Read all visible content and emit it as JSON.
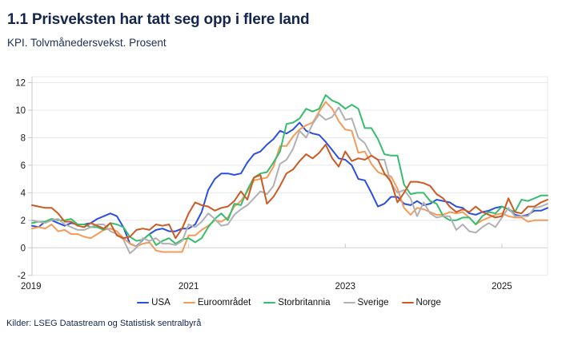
{
  "header": {
    "title": "1.1 Prisveksten har tatt seg opp i flere land",
    "subtitle": "KPI. Tolvmånedersvekst. Prosent"
  },
  "footer": {
    "source": "Kilder: LSEG Datastream og Statistisk sentralbyrå"
  },
  "chart_data": {
    "type": "line",
    "title": "1.1 Prisveksten har tatt seg opp i flere land",
    "subtitle": "KPI. Tolvmånedersvekst. Prosent",
    "x_unit": "month",
    "x_start": "2019-01",
    "x_end": "2025-08",
    "x_tick_labels": [
      "2019",
      "2021",
      "2023",
      "2025"
    ],
    "y_ticks": [
      -2,
      0,
      2,
      4,
      6,
      8,
      10,
      12
    ],
    "ylim": [
      -2,
      12.4
    ],
    "grid": true,
    "legend_position": "bottom",
    "colors": {
      "grid": "#e8e8e8",
      "zero_line": "#cfcfcf",
      "spine": "#c9c9c9",
      "tick_text": "#1a1a1a",
      "title_navy": "#14264e"
    },
    "series": [
      {
        "name": "USA",
        "color": "#2b50dd",
        "values": [
          1.6,
          1.5,
          1.9,
          2.0,
          1.8,
          1.6,
          1.8,
          1.7,
          1.7,
          1.8,
          2.1,
          2.3,
          2.5,
          2.3,
          1.5,
          0.3,
          0.1,
          0.6,
          1.0,
          1.3,
          1.4,
          1.2,
          1.2,
          1.4,
          1.4,
          1.7,
          2.6,
          4.2,
          5.0,
          5.4,
          5.4,
          5.3,
          5.4,
          6.2,
          6.8,
          7.0,
          7.5,
          7.9,
          8.5,
          8.3,
          8.6,
          9.1,
          8.5,
          8.3,
          8.2,
          7.7,
          7.1,
          6.5,
          6.4,
          6.0,
          5.0,
          4.9,
          4.0,
          3.0,
          3.2,
          3.7,
          3.7,
          3.2,
          3.1,
          3.4,
          3.1,
          3.2,
          3.5,
          3.4,
          3.3,
          3.0,
          2.9,
          2.5,
          2.4,
          2.6,
          2.7,
          2.9,
          3.0,
          2.8,
          2.4,
          2.3,
          2.4,
          2.7,
          2.7,
          2.9
        ]
      },
      {
        "name": "Euroområdet",
        "color": "#f59a58",
        "values": [
          1.4,
          1.5,
          1.4,
          1.7,
          1.2,
          1.3,
          1.0,
          1.0,
          0.8,
          0.7,
          1.0,
          1.3,
          1.4,
          1.2,
          0.7,
          0.3,
          0.1,
          0.3,
          0.4,
          -0.2,
          -0.3,
          -0.3,
          -0.3,
          -0.3,
          0.9,
          0.9,
          1.3,
          1.6,
          2.0,
          1.9,
          2.2,
          3.0,
          3.4,
          4.1,
          4.9,
          5.0,
          5.1,
          5.9,
          7.4,
          7.4,
          8.1,
          8.6,
          8.9,
          9.1,
          9.9,
          10.6,
          10.1,
          9.2,
          8.6,
          8.5,
          6.9,
          7.0,
          6.1,
          5.5,
          5.3,
          5.2,
          4.3,
          2.9,
          2.4,
          2.9,
          2.8,
          2.6,
          2.4,
          2.4,
          2.6,
          2.5,
          2.6,
          2.2,
          1.7,
          2.0,
          2.2,
          2.4,
          2.5,
          2.3,
          2.2,
          2.2,
          1.9,
          2.0,
          2.0,
          2.0
        ]
      },
      {
        "name": "Storbritannia",
        "color": "#36bd6e",
        "values": [
          1.8,
          1.9,
          1.9,
          2.1,
          2.0,
          2.0,
          2.1,
          1.7,
          1.7,
          1.5,
          1.5,
          1.3,
          1.8,
          1.7,
          1.5,
          0.8,
          0.5,
          0.6,
          1.0,
          0.2,
          0.5,
          0.7,
          0.3,
          0.6,
          0.7,
          0.4,
          0.7,
          1.5,
          2.1,
          2.5,
          2.0,
          3.2,
          3.1,
          4.2,
          5.1,
          5.4,
          5.5,
          6.2,
          7.0,
          9.0,
          9.1,
          9.4,
          10.1,
          9.9,
          10.1,
          11.1,
          10.7,
          10.5,
          10.1,
          10.4,
          10.1,
          8.7,
          8.7,
          7.9,
          6.8,
          6.7,
          6.7,
          4.6,
          3.9,
          4.0,
          4.0,
          3.4,
          3.2,
          2.3,
          2.0,
          2.0,
          2.2,
          2.2,
          1.7,
          2.3,
          2.6,
          2.5,
          3.0,
          2.8,
          2.6,
          3.5,
          3.4,
          3.6,
          3.8,
          3.8
        ]
      },
      {
        "name": "Sverige",
        "color": "#b1b1b3",
        "values": [
          2.0,
          1.9,
          1.8,
          2.0,
          2.1,
          1.7,
          1.5,
          1.3,
          1.3,
          1.5,
          1.7,
          1.7,
          1.2,
          1.0,
          0.6,
          -0.4,
          0.0,
          0.7,
          0.5,
          0.7,
          0.3,
          0.3,
          0.2,
          0.5,
          1.7,
          1.5,
          1.9,
          2.5,
          2.1,
          1.6,
          1.7,
          2.4,
          2.8,
          3.1,
          3.6,
          4.1,
          3.9,
          4.5,
          6.1,
          6.4,
          7.2,
          8.5,
          8.0,
          9.0,
          9.7,
          9.3,
          9.5,
          10.2,
          9.3,
          9.4,
          8.0,
          7.6,
          6.7,
          6.4,
          6.4,
          4.7,
          4.0,
          4.2,
          3.6,
          2.3,
          3.3,
          2.5,
          2.2,
          2.3,
          2.3,
          1.3,
          1.7,
          1.2,
          1.1,
          1.5,
          1.8,
          1.5,
          2.2,
          2.9,
          2.3,
          2.3,
          2.3,
          2.9,
          3.0,
          3.2
        ]
      },
      {
        "name": "Norge",
        "color": "#cc5a23",
        "values": [
          3.1,
          3.0,
          2.9,
          2.9,
          2.5,
          1.9,
          1.9,
          1.6,
          1.5,
          1.8,
          1.6,
          1.4,
          1.8,
          0.9,
          0.7,
          0.8,
          1.3,
          1.4,
          1.3,
          1.7,
          1.6,
          1.7,
          0.7,
          1.4,
          2.5,
          3.3,
          3.1,
          3.0,
          2.7,
          2.9,
          3.0,
          3.4,
          4.1,
          3.5,
          5.1,
          5.3,
          3.2,
          3.7,
          4.5,
          5.4,
          5.7,
          6.3,
          6.8,
          6.5,
          6.9,
          7.5,
          6.5,
          5.9,
          7.0,
          6.3,
          6.5,
          6.4,
          6.7,
          6.4,
          5.4,
          4.8,
          3.3,
          4.0,
          4.8,
          4.8,
          4.7,
          4.5,
          3.9,
          3.6,
          3.0,
          2.6,
          2.8,
          2.6,
          3.0,
          2.6,
          2.4,
          2.2,
          2.3,
          3.6,
          2.6,
          2.5,
          3.0,
          3.0,
          3.3,
          3.5
        ]
      }
    ]
  }
}
